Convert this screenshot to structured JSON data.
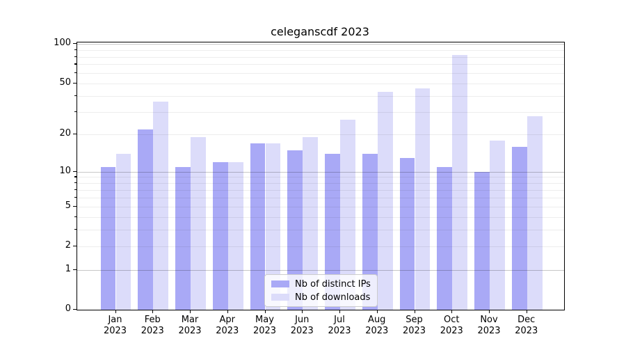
{
  "title": "celeganscdf 2023",
  "chart_data": {
    "type": "bar",
    "title": "celeganscdf 2023",
    "categories": [
      "Jan",
      "Feb",
      "Mar",
      "Apr",
      "May",
      "Jun",
      "Jul",
      "Aug",
      "Sep",
      "Oct",
      "Nov",
      "Dec"
    ],
    "category_year": "2023",
    "series": [
      {
        "name": "Nb of distinct IPs",
        "color": "#a9a9f6",
        "values": [
          11,
          22,
          11,
          12,
          17,
          15,
          14,
          14,
          13,
          11,
          10,
          16
        ]
      },
      {
        "name": "Nb of downloads",
        "color": "#dcdcfa",
        "values": [
          14,
          36,
          19,
          12,
          17,
          19,
          26,
          43,
          46,
          83,
          18,
          28
        ]
      }
    ],
    "yscale": "log1p",
    "ylim": [
      0,
      103
    ],
    "yticks_labeled": [
      0,
      1,
      2,
      5,
      10,
      20,
      50,
      100
    ],
    "yticks_minor": [
      3,
      4,
      6,
      7,
      8,
      9,
      30,
      40,
      60,
      70,
      80,
      90
    ],
    "grid_major_values": [
      1,
      10,
      100
    ],
    "grid": "on",
    "legend_position": "lower center",
    "axis_color": "#000000",
    "grid_colors": {
      "major": "rgba(0,0,0,0.22)",
      "minor": "rgba(0,0,0,0.07)"
    }
  }
}
